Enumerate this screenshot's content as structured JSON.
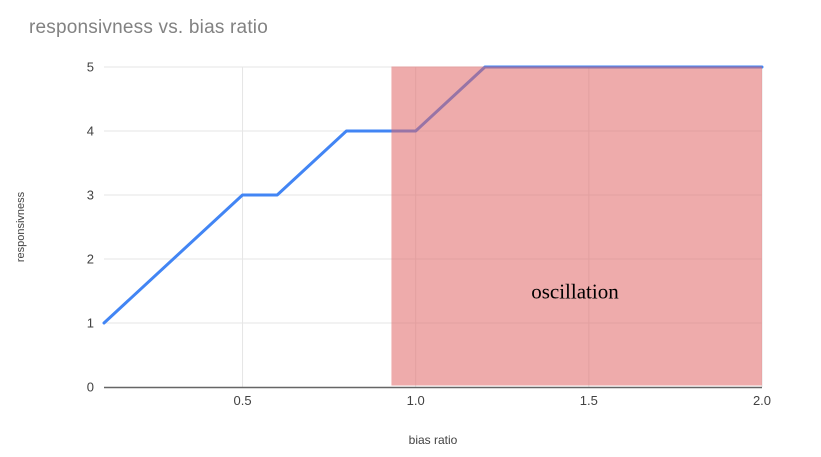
{
  "chart_data": {
    "type": "line",
    "title": "responsivness vs. bias ratio",
    "xlabel": "bias ratio",
    "ylabel": "responsivness",
    "series": [
      {
        "name": "responsivness",
        "x": [
          0.1,
          0.5,
          0.6,
          0.8,
          1.0,
          1.2,
          2.0
        ],
        "y": [
          1,
          3,
          3,
          4,
          4,
          5,
          5
        ],
        "color": "#4285f4",
        "stroke_width": 3
      }
    ],
    "xlim": [
      0.1,
      2.0
    ],
    "ylim": [
      0,
      5
    ],
    "x_ticks": [
      "0.5",
      "1.0",
      "1.5",
      "2.0"
    ],
    "y_ticks": [
      "0",
      "1",
      "2",
      "3",
      "4",
      "5"
    ],
    "grid": true,
    "legend": "none",
    "annotation_region": {
      "label": "oscillation",
      "x_start": 0.93,
      "x_end": 2.0,
      "y_start": 0,
      "y_end": 5,
      "fill_color": "#e06666",
      "fill_opacity": 0.55,
      "label_color": "#000000",
      "label_x": 1.46,
      "label_y": 1.5
    },
    "colors": {
      "gridline": "#e6e6e6",
      "axis_line": "#666666",
      "tick_label": "#424242",
      "axis_title": "#424242",
      "title": "#828282",
      "background": "#ffffff"
    }
  }
}
